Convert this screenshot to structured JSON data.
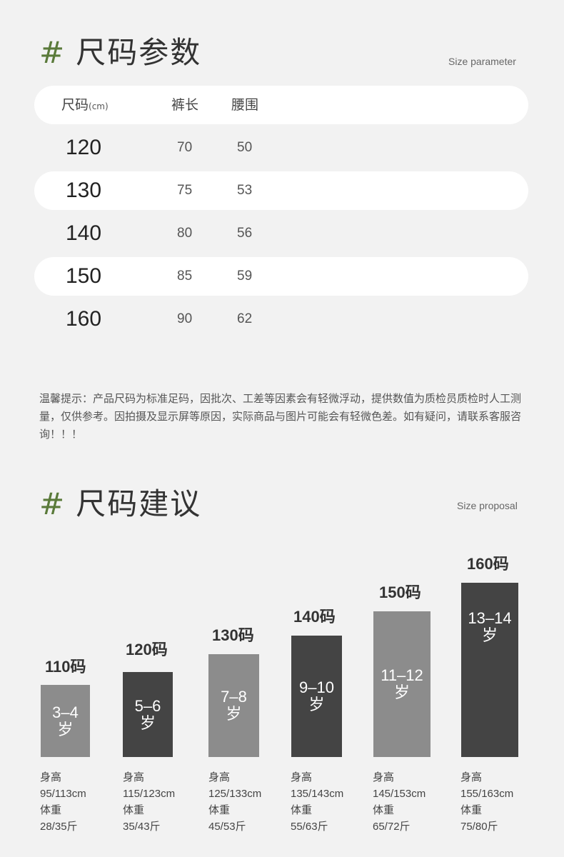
{
  "param": {
    "hash": "#",
    "title": "尺码参数",
    "subtitle": "Size parameter",
    "header": {
      "size": "尺码",
      "unit": "(cm)",
      "length": "裤长",
      "waist": "腰围"
    },
    "rows": [
      {
        "size": "120",
        "length": "70",
        "waist": "50"
      },
      {
        "size": "130",
        "length": "75",
        "waist": "53"
      },
      {
        "size": "140",
        "length": "80",
        "waist": "56"
      },
      {
        "size": "150",
        "length": "85",
        "waist": "59"
      },
      {
        "size": "160",
        "length": "90",
        "waist": "62"
      }
    ]
  },
  "note": "温馨提示：产品尺码为标准足码，因批次、工差等因素会有轻微浮动，提供数值为质检员质检时人工测量，仅供参考。因拍摄及显示屏等原因，实际商品与图片可能会有轻微色差。如有疑问，请联系客服咨询！！！",
  "proposal": {
    "hash": "#",
    "title": "尺码建议",
    "subtitle": "Size proposal",
    "colors": {
      "light": "#8c8c8c",
      "dark": "#444444"
    },
    "items": [
      {
        "size": "110码",
        "age_line1": "3–4",
        "age_line2": "岁",
        "height_label": "身高",
        "height": "95/113cm",
        "weight_label": "体重",
        "weight": "28/35斤"
      },
      {
        "size": "120码",
        "age_line1": "5–6",
        "age_line2": "岁",
        "height_label": "身高",
        "height": "115/123cm",
        "weight_label": "体重",
        "weight": "35/43斤"
      },
      {
        "size": "130码",
        "age_line1": "7–8",
        "age_line2": "岁",
        "height_label": "身高",
        "height": "125/133cm",
        "weight_label": "体重",
        "weight": "45/53斤"
      },
      {
        "size": "140码",
        "age_line1": "9–10",
        "age_line2": "岁",
        "height_label": "身高",
        "height": "135/143cm",
        "weight_label": "体重",
        "weight": "55/63斤"
      },
      {
        "size": "150码",
        "age_line1": "11–12",
        "age_line2": "岁",
        "height_label": "身高",
        "height": "145/153cm",
        "weight_label": "体重",
        "weight": "65/72斤"
      },
      {
        "size": "160码",
        "age_line1": "13–14",
        "age_line2": "岁",
        "height_label": "身高",
        "height": "155/163cm",
        "weight_label": "体重",
        "weight": "75/80斤"
      }
    ]
  }
}
